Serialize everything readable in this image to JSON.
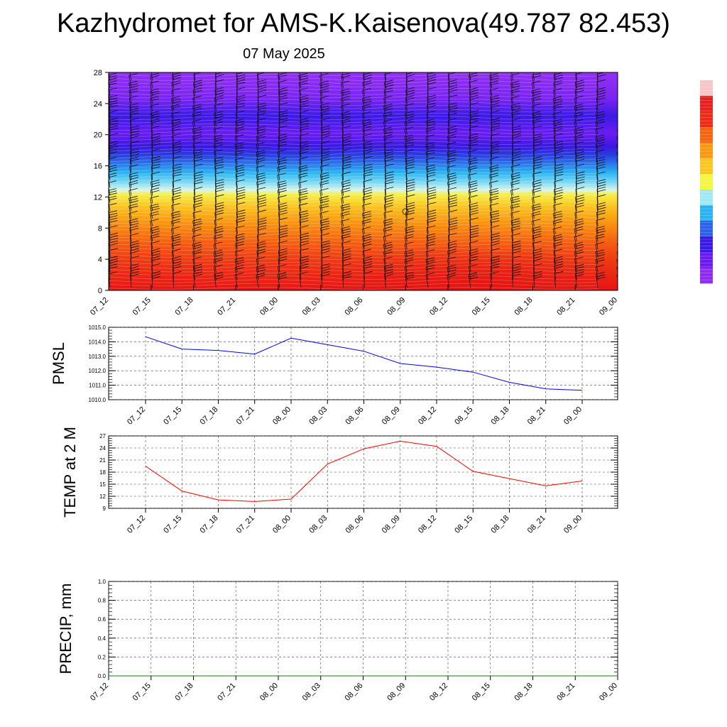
{
  "header": {
    "title": "Kazhydromet for AMS-K.Kaisenova(49.787 82.453)",
    "subtitle": "07 May 2025"
  },
  "chart_data": [
    {
      "type": "heatmap",
      "name": "vertical cross-section (colour-filled contours with wind barbs)",
      "x_ticks": [
        "07_12",
        "07_15",
        "07_18",
        "07_21",
        "08_00",
        "08_03",
        "08_06",
        "08_09",
        "08_12",
        "08_15",
        "08_18",
        "08_21",
        "09_00"
      ],
      "y_ticks": [
        "0",
        "4",
        "8",
        "12",
        "16",
        "20",
        "24",
        "28"
      ],
      "ylim": [
        0,
        28
      ],
      "colorbar": [
        "#8f2bf0",
        "#6a19f5",
        "#3a18e8",
        "#2b62ea",
        "#2ab3f0",
        "#9fe8f5",
        "#f5f542",
        "#f9c71e",
        "#fa9811",
        "#f6640f",
        "#ee2b15",
        "#e81f1f",
        "#f8c6c6"
      ]
    },
    {
      "type": "line",
      "ylabel": "PMSL",
      "x": [
        "07_12",
        "07_15",
        "07_18",
        "07_21",
        "08_00",
        "08_03",
        "08_06",
        "08_09",
        "08_12",
        "08_15",
        "08_18",
        "08_21",
        "09_00"
      ],
      "series": [
        {
          "values": [
            1014.35,
            1013.5,
            1013.4,
            1013.15,
            1014.25,
            1013.8,
            1013.35,
            1012.5,
            1012.25,
            1011.9,
            1011.2,
            1010.75,
            1010.65
          ],
          "color": "#0000ff"
        }
      ],
      "y_ticks": [
        "1010.0",
        "1011.0",
        "1012.0",
        "1013.0",
        "1014.0",
        "1015.0"
      ],
      "ylim": [
        1010,
        1015
      ],
      "grid": true
    },
    {
      "type": "line",
      "ylabel": "TEMP at 2 M",
      "x": [
        "07_12",
        "07_15",
        "07_18",
        "07_21",
        "08_00",
        "08_03",
        "08_06",
        "08_09",
        "08_12",
        "08_15",
        "08_18",
        "08_21",
        "09_00"
      ],
      "series": [
        {
          "values": [
            19.5,
            13.3,
            11.1,
            10.7,
            11.3,
            20.0,
            23.8,
            25.7,
            24.4,
            18.2,
            16.4,
            14.6,
            15.8
          ],
          "color": "#ff0000"
        }
      ],
      "y_ticks": [
        "9",
        "12",
        "15",
        "18",
        "21",
        "24",
        "27"
      ],
      "ylim": [
        9,
        27
      ],
      "grid": true
    },
    {
      "type": "line",
      "ylabel": "PRECIP, mm",
      "x": [
        "07_12",
        "07_15",
        "07_18",
        "07_21",
        "08_00",
        "08_03",
        "08_06",
        "08_09",
        "08_12",
        "08_15",
        "08_18",
        "08_21",
        "09_00"
      ],
      "series": [
        {
          "values": [
            0,
            0,
            0,
            0,
            0,
            0,
            0,
            0,
            0,
            0,
            0,
            0,
            0
          ],
          "color": "#1a7a1a"
        }
      ],
      "y_ticks": [
        "0.0",
        "0.2",
        "0.4",
        "0.6",
        "0.8",
        "1.0"
      ],
      "ylim": [
        0,
        1
      ],
      "grid": true
    }
  ]
}
